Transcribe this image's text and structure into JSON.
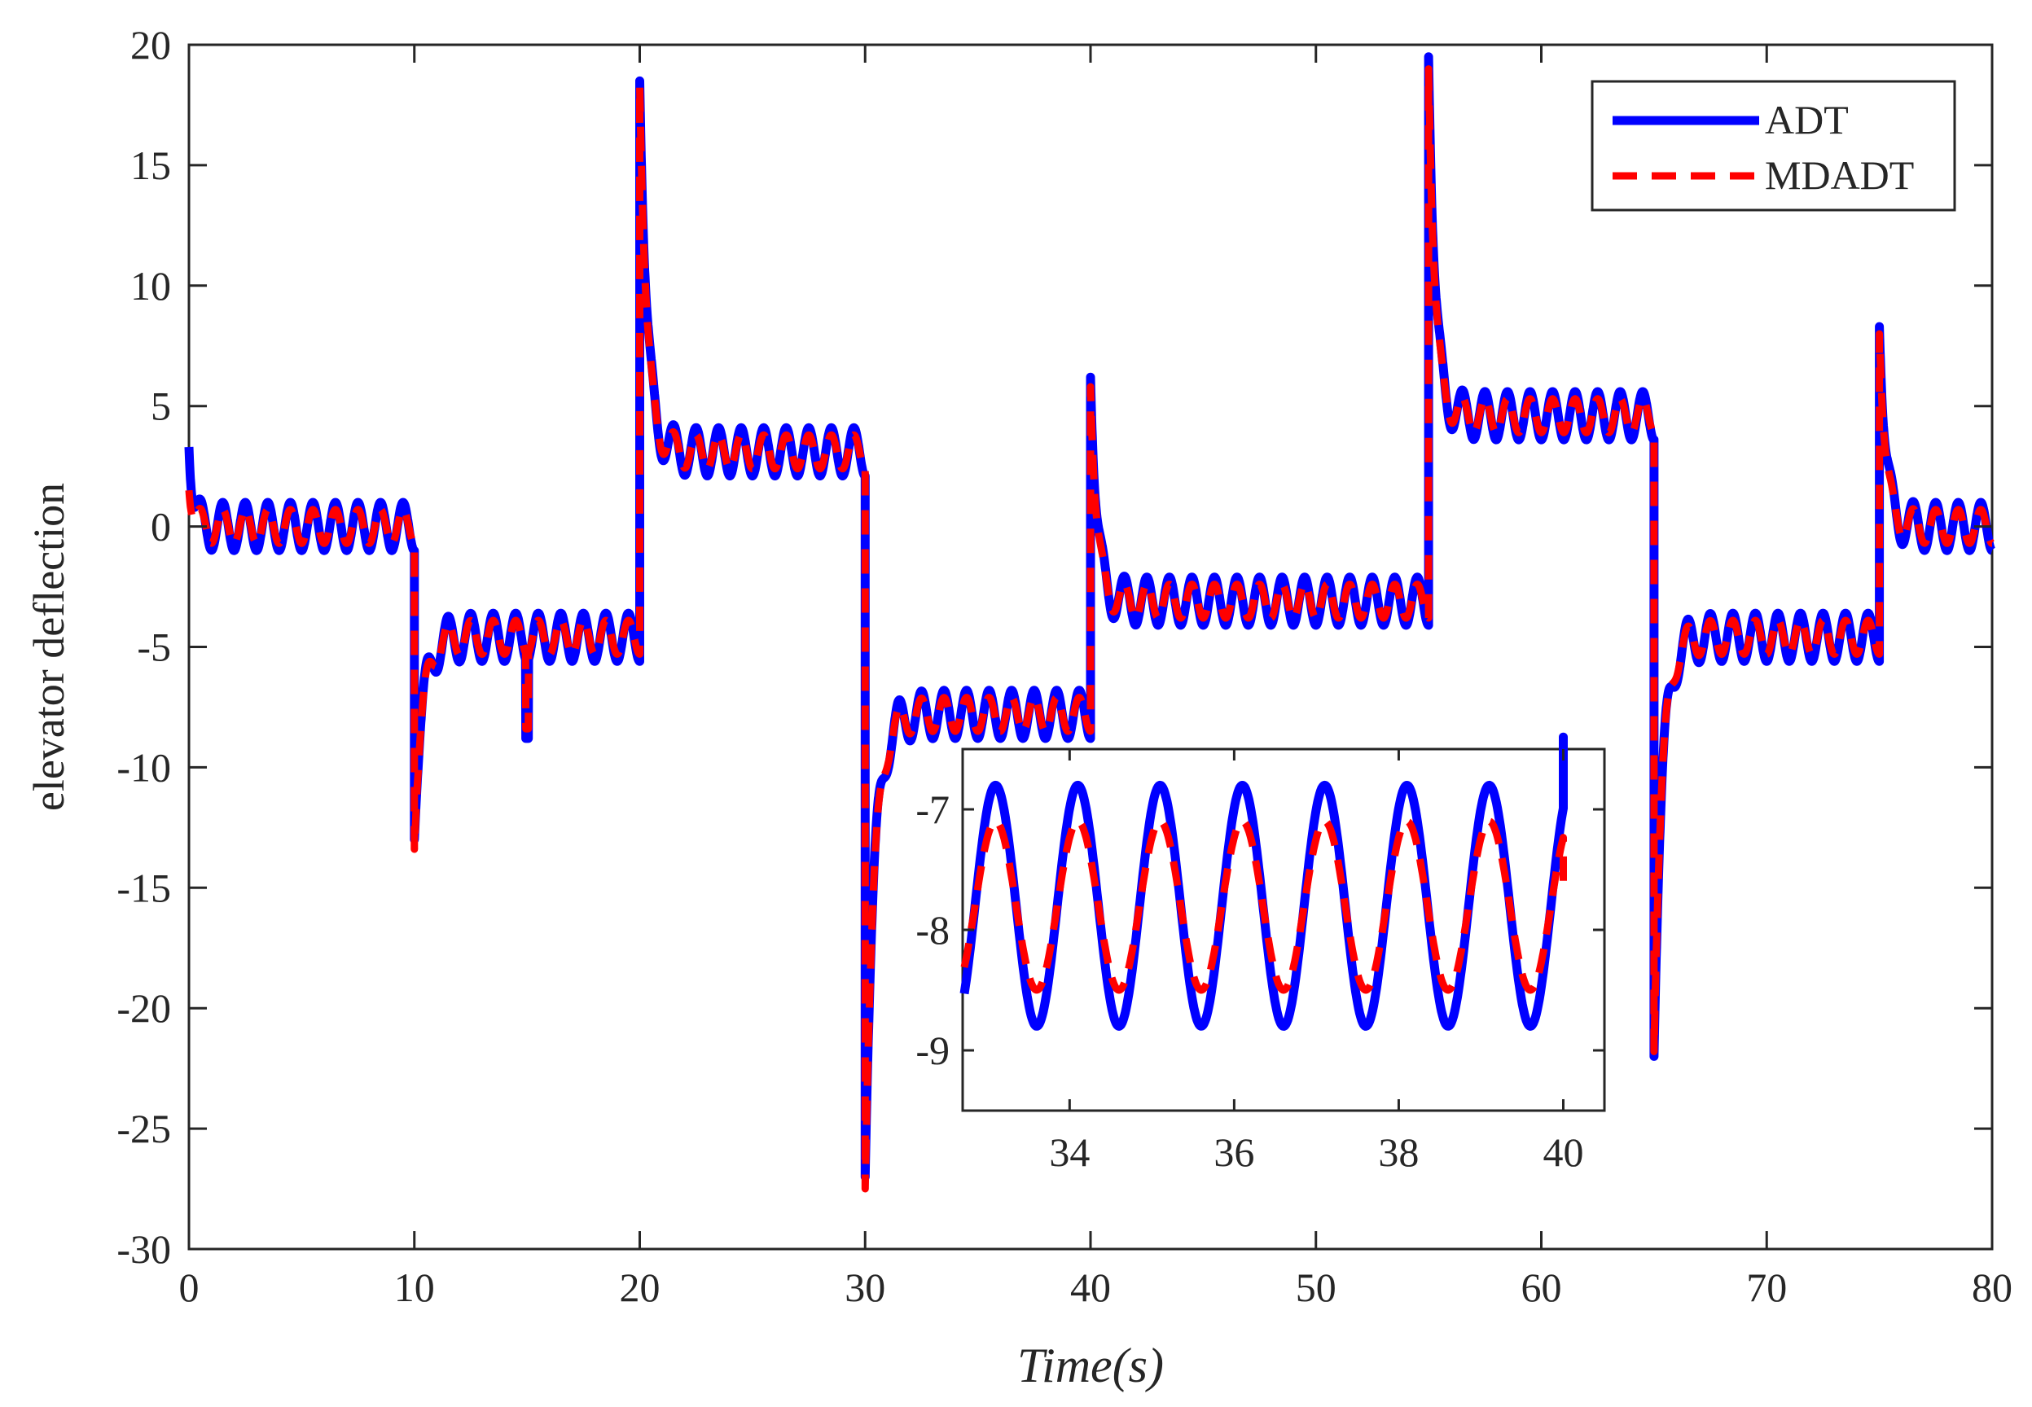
{
  "chart_data": [
    {
      "type": "line",
      "id": "main",
      "title": "",
      "xlabel": "Time(s)",
      "ylabel": "elevator deflection",
      "xlim": [
        0,
        80
      ],
      "ylim": [
        -30,
        20
      ],
      "xticks": [
        0,
        10,
        20,
        30,
        40,
        50,
        60,
        70,
        80
      ],
      "yticks": [
        20,
        15,
        10,
        5,
        0,
        -5,
        -10,
        -15,
        -20,
        -25,
        -30
      ],
      "legend": {
        "position": "top-right",
        "entries": [
          "ADT",
          "MDADT"
        ]
      },
      "series": [
        {
          "name": "ADT",
          "color": "#0000ff",
          "style": "solid",
          "segments": [
            {
              "start": 0,
              "end": 10,
              "level": 0,
              "amp": 1.0,
              "startValue": 3.3,
              "settle": 0.5
            },
            {
              "start": 10,
              "end": 20,
              "level": -4.6,
              "amp": 1.0,
              "startValue": -13.0,
              "settle": 1.0
            },
            {
              "start": 20,
              "end": 30,
              "level": 3.1,
              "amp": 1.0,
              "startValue": 18.5,
              "settle": 0.9
            },
            {
              "start": 30,
              "end": 40,
              "level": -7.8,
              "amp": 1.0,
              "startValue": -27.0,
              "settle": 1.1
            },
            {
              "start": 40,
              "end": 55,
              "level": -3.1,
              "amp": 1.0,
              "startValue": 6.2,
              "settle": 0.8
            },
            {
              "start": 55,
              "end": 65,
              "level": 4.6,
              "amp": 1.0,
              "startValue": 19.5,
              "settle": 0.8
            },
            {
              "start": 65,
              "end": 75,
              "level": -4.6,
              "amp": 1.0,
              "startValue": -22.0,
              "settle": 1.0
            },
            {
              "start": 75,
              "end": 80,
              "level": 0,
              "amp": 1.0,
              "startValue": 8.3,
              "settle": 0.8
            }
          ],
          "spikes": [
            {
              "t": 15.0,
              "value": -8.8
            }
          ],
          "period": 1.0
        },
        {
          "name": "MDADT",
          "color": "#ff0000",
          "style": "dashed",
          "segments": [
            {
              "start": 0,
              "end": 10,
              "level": 0,
              "amp": 0.7,
              "startValue": 1.5,
              "settle": 0.5
            },
            {
              "start": 10,
              "end": 20,
              "level": -4.6,
              "amp": 0.7,
              "startValue": -13.4,
              "settle": 1.0
            },
            {
              "start": 20,
              "end": 30,
              "level": 3.1,
              "amp": 0.7,
              "startValue": 18.3,
              "settle": 0.9
            },
            {
              "start": 30,
              "end": 40,
              "level": -7.8,
              "amp": 0.7,
              "startValue": -27.5,
              "settle": 1.1
            },
            {
              "start": 40,
              "end": 55,
              "level": -3.1,
              "amp": 0.7,
              "startValue": 5.8,
              "settle": 0.8
            },
            {
              "start": 55,
              "end": 65,
              "level": 4.6,
              "amp": 0.7,
              "startValue": 19.0,
              "settle": 0.8
            },
            {
              "start": 65,
              "end": 75,
              "level": -4.6,
              "amp": 0.7,
              "startValue": -21.8,
              "settle": 1.0
            },
            {
              "start": 75,
              "end": 80,
              "level": 0,
              "amp": 0.7,
              "startValue": 8.0,
              "settle": 0.8
            }
          ],
          "spikes": [
            {
              "t": 15.0,
              "value": -8.4
            }
          ],
          "period": 1.0
        }
      ]
    },
    {
      "type": "line",
      "id": "inset",
      "title": "",
      "xlabel": "",
      "ylabel": "",
      "xlim": [
        32.7,
        40.5
      ],
      "ylim": [
        -9.5,
        -6.5
      ],
      "xticks": [
        34,
        36,
        38,
        40
      ],
      "yticks": [
        -7,
        -8,
        -9
      ],
      "series": [
        {
          "name": "ADT",
          "color": "#0000ff",
          "style": "solid",
          "center": -7.8,
          "amp": 1.0,
          "period": 1.0,
          "phasePeak": 33.1,
          "end": 40.0,
          "finalRise": -6.4
        },
        {
          "name": "MDADT",
          "color": "#ff0000",
          "style": "dashed",
          "center": -7.8,
          "amp": 0.7,
          "period": 1.0,
          "phasePeak": 33.1,
          "end": 40.0,
          "finalRise": -7.6
        }
      ]
    }
  ]
}
